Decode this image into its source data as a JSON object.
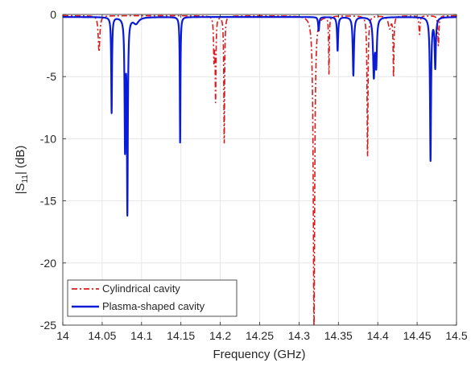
{
  "chart_data": {
    "type": "line",
    "title": "",
    "xlabel": "Frequency (GHz)",
    "ylabel": "|S11| (dB)",
    "ylabel_main": "|S",
    "ylabel_sub": "11",
    "ylabel_tail": "| (dB)",
    "xlim": [
      14,
      14.5
    ],
    "ylim": [
      -25,
      0
    ],
    "xticks": [
      "14",
      "14.05",
      "14.1",
      "14.15",
      "14.2",
      "14.25",
      "14.3",
      "14.35",
      "14.4",
      "14.45",
      "14.5"
    ],
    "yticks": [
      "0",
      "-5",
      "-10",
      "-15",
      "-20",
      "-25"
    ],
    "grid": true,
    "legend_position": "bottom-left",
    "series": [
      {
        "name": "Cylindrical cavity",
        "color": "#e0191b",
        "style": "dash-dot",
        "baseline": -0.1,
        "resonances": [
          {
            "f": 14.046,
            "depth": -2.9,
            "width": 0.0012
          },
          {
            "f": 14.192,
            "depth": -3.3,
            "width": 0.0007
          },
          {
            "f": 14.194,
            "depth": -6.6,
            "width": 0.0006
          },
          {
            "f": 14.205,
            "depth": -10.2,
            "width": 0.0006
          },
          {
            "f": 14.319,
            "depth": -25.0,
            "width": 0.0011
          },
          {
            "f": 14.338,
            "depth": -4.6,
            "width": 0.0005
          },
          {
            "f": 14.387,
            "depth": -11.3,
            "width": 0.0007
          },
          {
            "f": 14.42,
            "depth": -4.8,
            "width": 0.0006
          },
          {
            "f": 14.415,
            "depth": -1.0,
            "width": 0.002
          },
          {
            "f": 14.453,
            "depth": -1.5,
            "width": 0.0008
          },
          {
            "f": 14.477,
            "depth": -2.4,
            "width": 0.0008
          }
        ]
      },
      {
        "name": "Plasma-shaped cavity",
        "color": "#0a1bd8",
        "style": "solid",
        "baseline": -0.2,
        "resonances": [
          {
            "f": 14.062,
            "depth": -7.7,
            "width": 0.0006
          },
          {
            "f": 14.079,
            "depth": -10.2,
            "width": 0.0007
          },
          {
            "f": 14.082,
            "depth": -15.4,
            "width": 0.0007
          },
          {
            "f": 14.093,
            "depth": -0.5,
            "width": 0.004
          },
          {
            "f": 14.149,
            "depth": -10.1,
            "width": 0.0005
          },
          {
            "f": 14.325,
            "depth": -1.1,
            "width": 0.0008
          },
          {
            "f": 14.349,
            "depth": -2.7,
            "width": 0.0008
          },
          {
            "f": 14.369,
            "depth": -4.7,
            "width": 0.0009
          },
          {
            "f": 14.395,
            "depth": -4.6,
            "width": 0.0012
          },
          {
            "f": 14.398,
            "depth": -3.6,
            "width": 0.001
          },
          {
            "f": 14.467,
            "depth": -11.5,
            "width": 0.0008
          },
          {
            "f": 14.473,
            "depth": -4.0,
            "width": 0.0009
          }
        ]
      }
    ]
  }
}
